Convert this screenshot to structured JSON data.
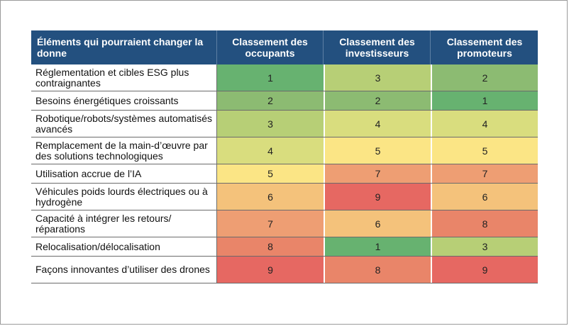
{
  "header": {
    "col0": "Éléments qui pourraient changer la donne",
    "col1": "Classement des occupants",
    "col2": "Classement des investisseurs",
    "col3": "Classement des promoteurs"
  },
  "rows": [
    {
      "label": "Réglementation et cibles ESG plus contraignantes",
      "v": [
        "1",
        "3",
        "2"
      ],
      "colors": [
        "#67b270",
        "#b7cf76",
        "#8cbb72"
      ]
    },
    {
      "label": "Besoins énergétiques croissants",
      "v": [
        "2",
        "2",
        "1"
      ],
      "colors": [
        "#8cbb72",
        "#8cbb72",
        "#67b270"
      ]
    },
    {
      "label": "Robotique/robots/systèmes automatisés avancés",
      "v": [
        "3",
        "4",
        "4"
      ],
      "colors": [
        "#b7cf76",
        "#d9dd7e",
        "#d9dd7e"
      ]
    },
    {
      "label": "Remplacement de la main-d’œuvre par des solutions technologiques",
      "v": [
        "4",
        "5",
        "5"
      ],
      "colors": [
        "#d9dd7e",
        "#fbe585",
        "#fbe585"
      ]
    },
    {
      "label": "Utilisation accrue de l’IA",
      "v": [
        "5",
        "7",
        "7"
      ],
      "colors": [
        "#fbe585",
        "#ee9e73",
        "#ee9e73"
      ]
    },
    {
      "label": "Véhicules poids lourds électriques ou à hydrogène",
      "v": [
        "6",
        "9",
        "6"
      ],
      "colors": [
        "#f4c27b",
        "#e66862",
        "#f4c27b"
      ]
    },
    {
      "label": "Capacité à intégrer les retours/ réparations",
      "v": [
        "7",
        "6",
        "8"
      ],
      "colors": [
        "#ee9e73",
        "#f4c27b",
        "#e98569"
      ]
    },
    {
      "label": "Relocalisation/délocalisation",
      "v": [
        "8",
        "1",
        "3"
      ],
      "colors": [
        "#e98569",
        "#67b270",
        "#b7cf76"
      ]
    },
    {
      "label": "Façons innovantes d’utiliser des drones",
      "v": [
        "9",
        "8",
        "9"
      ],
      "colors": [
        "#e66862",
        "#e98569",
        "#e66862"
      ]
    }
  ]
}
